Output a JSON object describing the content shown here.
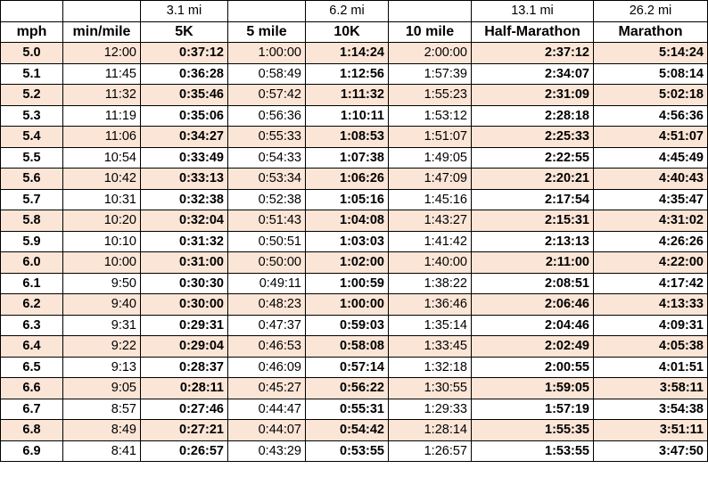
{
  "header": {
    "distances": [
      "",
      "",
      "3.1 mi",
      "",
      "6.2 mi",
      "",
      "13.1 mi",
      "26.2 mi"
    ],
    "labels": [
      "mph",
      "min/mile",
      "5K",
      "5 mile",
      "10K",
      "10 mile",
      "Half-Marathon",
      "Marathon"
    ]
  },
  "colors": {
    "shade": "#fbe5d6",
    "plain": "#ffffff"
  },
  "rows": [
    [
      "5.0",
      "12:00",
      "0:37:12",
      "1:00:00",
      "1:14:24",
      "2:00:00",
      "2:37:12",
      "5:14:24"
    ],
    [
      "5.1",
      "11:45",
      "0:36:28",
      "0:58:49",
      "1:12:56",
      "1:57:39",
      "2:34:07",
      "5:08:14"
    ],
    [
      "5.2",
      "11:32",
      "0:35:46",
      "0:57:42",
      "1:11:32",
      "1:55:23",
      "2:31:09",
      "5:02:18"
    ],
    [
      "5.3",
      "11:19",
      "0:35:06",
      "0:56:36",
      "1:10:11",
      "1:53:12",
      "2:28:18",
      "4:56:36"
    ],
    [
      "5.4",
      "11:06",
      "0:34:27",
      "0:55:33",
      "1:08:53",
      "1:51:07",
      "2:25:33",
      "4:51:07"
    ],
    [
      "5.5",
      "10:54",
      "0:33:49",
      "0:54:33",
      "1:07:38",
      "1:49:05",
      "2:22:55",
      "4:45:49"
    ],
    [
      "5.6",
      "10:42",
      "0:33:13",
      "0:53:34",
      "1:06:26",
      "1:47:09",
      "2:20:21",
      "4:40:43"
    ],
    [
      "5.7",
      "10:31",
      "0:32:38",
      "0:52:38",
      "1:05:16",
      "1:45:16",
      "2:17:54",
      "4:35:47"
    ],
    [
      "5.8",
      "10:20",
      "0:32:04",
      "0:51:43",
      "1:04:08",
      "1:43:27",
      "2:15:31",
      "4:31:02"
    ],
    [
      "5.9",
      "10:10",
      "0:31:32",
      "0:50:51",
      "1:03:03",
      "1:41:42",
      "2:13:13",
      "4:26:26"
    ],
    [
      "6.0",
      "10:00",
      "0:31:00",
      "0:50:00",
      "1:02:00",
      "1:40:00",
      "2:11:00",
      "4:22:00"
    ],
    [
      "6.1",
      "9:50",
      "0:30:30",
      "0:49:11",
      "1:00:59",
      "1:38:22",
      "2:08:51",
      "4:17:42"
    ],
    [
      "6.2",
      "9:40",
      "0:30:00",
      "0:48:23",
      "1:00:00",
      "1:36:46",
      "2:06:46",
      "4:13:33"
    ],
    [
      "6.3",
      "9:31",
      "0:29:31",
      "0:47:37",
      "0:59:03",
      "1:35:14",
      "2:04:46",
      "4:09:31"
    ],
    [
      "6.4",
      "9:22",
      "0:29:04",
      "0:46:53",
      "0:58:08",
      "1:33:45",
      "2:02:49",
      "4:05:38"
    ],
    [
      "6.5",
      "9:13",
      "0:28:37",
      "0:46:09",
      "0:57:14",
      "1:32:18",
      "2:00:55",
      "4:01:51"
    ],
    [
      "6.6",
      "9:05",
      "0:28:11",
      "0:45:27",
      "0:56:22",
      "1:30:55",
      "1:59:05",
      "3:58:11"
    ],
    [
      "6.7",
      "8:57",
      "0:27:46",
      "0:44:47",
      "0:55:31",
      "1:29:33",
      "1:57:19",
      "3:54:38"
    ],
    [
      "6.8",
      "8:49",
      "0:27:21",
      "0:44:07",
      "0:54:42",
      "1:28:14",
      "1:55:35",
      "3:51:11"
    ],
    [
      "6.9",
      "8:41",
      "0:26:57",
      "0:43:29",
      "0:53:55",
      "1:26:57",
      "1:53:55",
      "3:47:50"
    ]
  ]
}
